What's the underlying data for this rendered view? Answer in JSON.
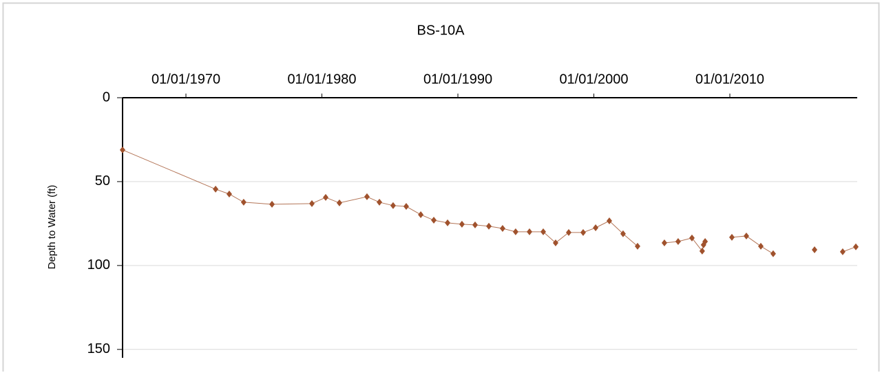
{
  "chart_data": {
    "type": "line",
    "title": "BS-10A",
    "y_label": "Depth to Water (ft)",
    "x": [
      "1965-05-05",
      "1972-03-08",
      "1973-03-10",
      "1974-04-01",
      "1976-05-01",
      "1979-04-08",
      "1980-04-12",
      "1981-04-16",
      "1983-04-26",
      "1984-03-25",
      "1985-03-28",
      "1986-03-15",
      "1987-04-10",
      "1988-03-25",
      "1989-03-30",
      "1990-04-20",
      "1991-04-08",
      "1992-04-12",
      "1993-04-16",
      "1994-04-01",
      "1995-04-08",
      "1996-04-12",
      "1997-03-10",
      "1998-02-25",
      "1999-03-20",
      "2000-02-18",
      "2001-02-20",
      "2002-02-24",
      "2003-03-20",
      "2004-03-01",
      "2005-03-10",
      "2006-03-14",
      "2007-03-20",
      "2007-12-20",
      "2008-01-25",
      "2008-03-08",
      "2009-02-01",
      "2010-02-25",
      "2011-03-20",
      "2012-04-12",
      "2013-03-10",
      "2015-01-01",
      "2016-03-25",
      "2017-06-01",
      "2018-04-20",
      "2019-04-08"
    ],
    "series": [
      {
        "name": "BS-10A",
        "color": "#a0522d",
        "values": [
          31.1,
          54.5,
          57.4,
          62.3,
          63.5,
          63.1,
          59.4,
          62.7,
          59.0,
          62.3,
          64.3,
          64.8,
          69.7,
          73.0,
          74.6,
          75.4,
          75.8,
          76.6,
          77.9,
          79.9,
          79.9,
          79.9,
          86.5,
          80.3,
          80.3,
          77.5,
          73.4,
          81.1,
          88.5,
          null,
          86.5,
          85.7,
          83.6,
          91.4,
          87.7,
          85.7,
          null,
          83.2,
          82.4,
          88.5,
          93.0,
          null,
          90.6,
          null,
          91.8,
          88.9
        ]
      }
    ],
    "xlim": [
      "1965-05-05",
      "2019-05-15"
    ],
    "xticks": [
      {
        "value": "1970-01-01",
        "label": "01/01/1970"
      },
      {
        "value": "1980-01-01",
        "label": "01/01/1980"
      },
      {
        "value": "1990-01-01",
        "label": "01/01/1990"
      },
      {
        "value": "2000-01-01",
        "label": "01/01/2000"
      },
      {
        "value": "2010-01-01",
        "label": "01/01/2010"
      }
    ],
    "ylim": [
      0,
      155
    ],
    "yticks": [
      0,
      50,
      100,
      150
    ],
    "y_inverted": true,
    "grid": true
  }
}
